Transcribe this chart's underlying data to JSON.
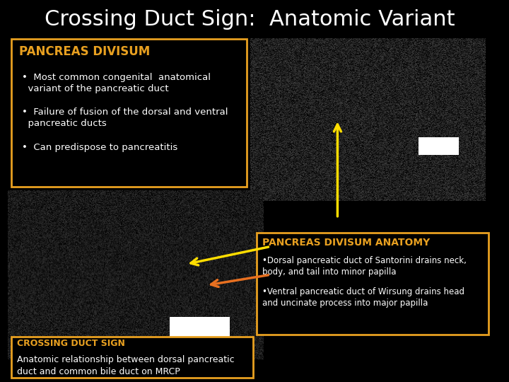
{
  "title": "Crossing Duct Sign:  Anatomic Variant",
  "title_color": "#ffffff",
  "title_fontsize": 22,
  "background_color": "#000000",
  "box1_title": "PANCREAS DIVISUM",
  "box1_title_color": "#e8a020",
  "box1_bullets": [
    "Most common congenital  anatomical\n  variant of the pancreatic duct",
    "Failure of fusion of the dorsal and ventral\n  pancreatic ducts",
    "Can predispose to pancreatitis"
  ],
  "box1_text_color": "#ffffff",
  "box1_edge_color": "#e8a020",
  "box1_face_color": "#000000",
  "box2_title": "PANCREAS DIVISUM ANATOMY",
  "box2_title_color": "#e8a020",
  "box2_bullets": [
    "Dorsal pancreatic duct of Santorini drains neck,\nbody, and tail into minor papilla",
    "Ventral pancreatic duct of Wirsung drains head\nand uncinate process into major papilla"
  ],
  "box2_text_color": "#ffffff",
  "box2_edge_color": "#e8a020",
  "box2_face_color": "#000000",
  "box3_title": "CROSSING DUCT SIGN",
  "box3_title_color": "#e8a020",
  "box3_text": "Anatomic relationship between dorsal pancreatic\nduct and common bile duct on MRCP",
  "box3_text_color": "#ffffff",
  "box3_edge_color": "#e8a020",
  "box3_face_color": "#000000",
  "arrow1_color": "#ffdd00",
  "arrow2_color": "#e87020"
}
